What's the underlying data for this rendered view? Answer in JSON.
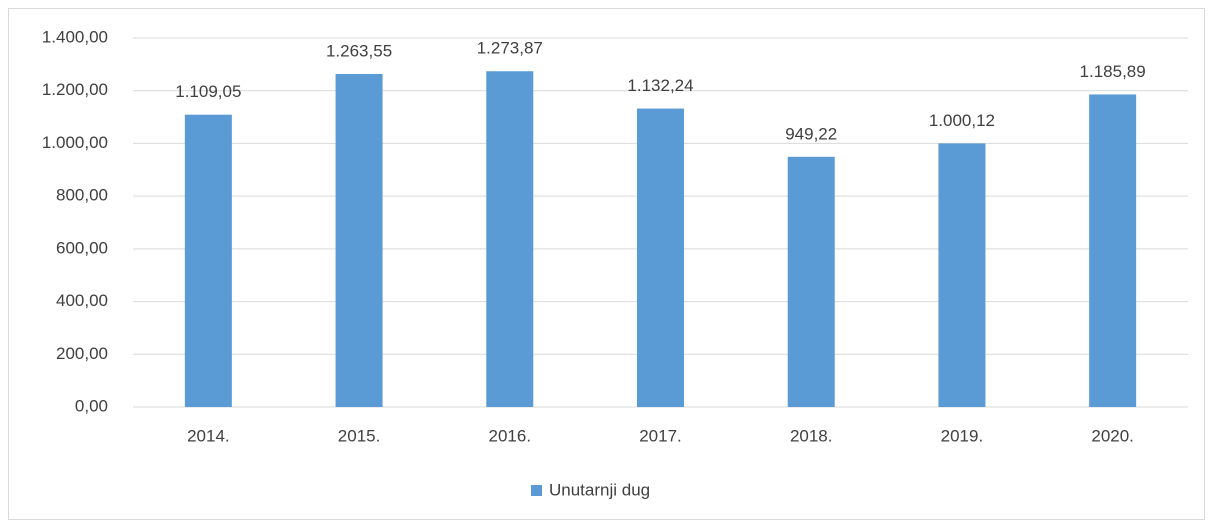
{
  "chart_data": {
    "type": "bar",
    "categories": [
      "2014.",
      "2015.",
      "2016.",
      "2017.",
      "2018.",
      "2019.",
      "2020."
    ],
    "series": [
      {
        "name": "Unutarnji dug",
        "color": "#5b9bd5",
        "values": [
          1109.05,
          1263.55,
          1273.87,
          1132.24,
          949.22,
          1000.12,
          1185.89
        ],
        "value_labels": [
          "1.109,05",
          "1.263,55",
          "1.273,87",
          "1.132,24",
          "949,22",
          "1.000,12",
          "1.185,89"
        ]
      }
    ],
    "ylim": [
      0,
      1400
    ],
    "yticks": [
      {
        "value": 0,
        "label": "0,00"
      },
      {
        "value": 200,
        "label": "200,00"
      },
      {
        "value": 400,
        "label": "400,00"
      },
      {
        "value": 600,
        "label": "600,00"
      },
      {
        "value": 800,
        "label": "800,00"
      },
      {
        "value": 1000,
        "label": "1.000,00"
      },
      {
        "value": 1200,
        "label": "1.200,00"
      },
      {
        "value": 1400,
        "label": "1.400,00"
      }
    ],
    "grid": true,
    "legend": "bottom"
  }
}
